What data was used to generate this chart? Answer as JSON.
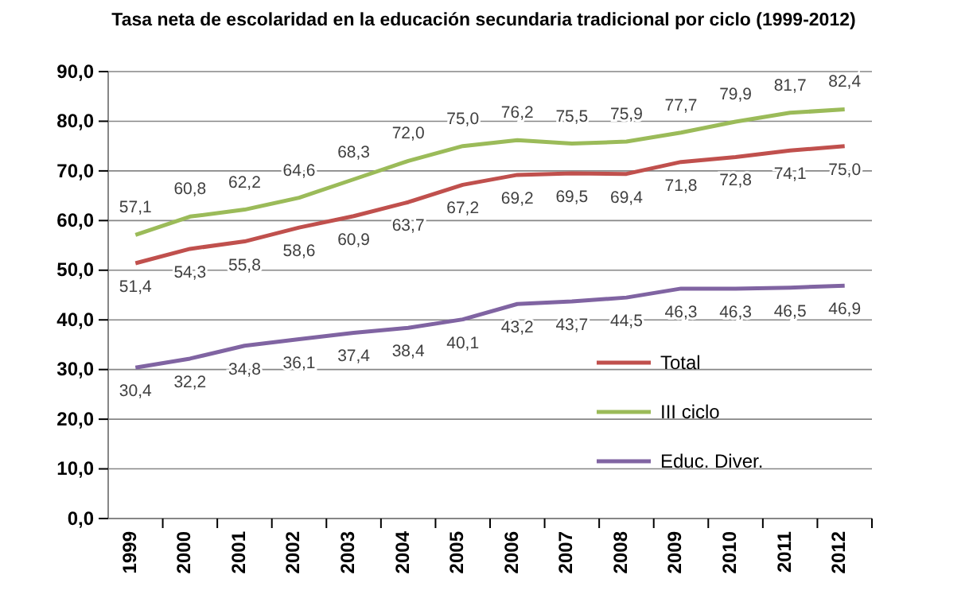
{
  "chart_data": {
    "type": "line",
    "title": "Tasa neta de escolaridad en la educación secundaria tradicional por ciclo (1999-2012)",
    "categories": [
      "1999",
      "2000",
      "2001",
      "2002",
      "2003",
      "2004",
      "2005",
      "2006",
      "2007",
      "2008",
      "2009",
      "2010",
      "2011",
      "2012"
    ],
    "series": [
      {
        "name": "Total",
        "color": "#c0504d",
        "values": [
          51.4,
          54.3,
          55.8,
          58.6,
          60.9,
          63.7,
          67.2,
          69.2,
          69.5,
          69.4,
          71.8,
          72.8,
          74.1,
          75.0
        ],
        "value_labels": [
          "51,4",
          "54,3",
          "55,8",
          "58,6",
          "60,9",
          "63,7",
          "67,2",
          "69,2",
          "69,5",
          "69,4",
          "71,8",
          "72,8",
          "74,1",
          "75,0"
        ]
      },
      {
        "name": "III ciclo",
        "color": "#9bbb59",
        "values": [
          57.1,
          60.8,
          62.2,
          64.6,
          68.3,
          72.0,
          75.0,
          76.2,
          75.5,
          75.9,
          77.7,
          79.9,
          81.7,
          82.4
        ],
        "value_labels": [
          "57,1",
          "60,8",
          "62,2",
          "64,6",
          "68,3",
          "72,0",
          "75,0",
          "76,2",
          "75,5",
          "75,9",
          "77,7",
          "79,9",
          "81,7",
          "82,4"
        ]
      },
      {
        "name": "Educ. Diver.",
        "color": "#8064a2",
        "values": [
          30.4,
          32.2,
          34.8,
          36.1,
          37.4,
          38.4,
          40.1,
          43.2,
          43.7,
          44.5,
          46.3,
          46.3,
          46.5,
          46.9
        ],
        "value_labels": [
          "30,4",
          "32,2",
          "34,8",
          "36,1",
          "37,4",
          "38,4",
          "40,1",
          "43,2",
          "43,7",
          "44,5",
          "46,3",
          "46,3",
          "46,5",
          "46,9"
        ]
      }
    ],
    "ylim": [
      0,
      90
    ],
    "yticks": [
      {
        "value": 0,
        "label": "0,0"
      },
      {
        "value": 10,
        "label": "10,0"
      },
      {
        "value": 20,
        "label": "20,0"
      },
      {
        "value": 30,
        "label": "30,0"
      },
      {
        "value": 40,
        "label": "40,0"
      },
      {
        "value": 50,
        "label": "50,0"
      },
      {
        "value": 60,
        "label": "60,0"
      },
      {
        "value": 70,
        "label": "70,0"
      },
      {
        "value": 80,
        "label": "80,0"
      },
      {
        "value": 90,
        "label": "90,0"
      }
    ],
    "grid": "y",
    "legend": "bottom right",
    "marker": "none",
    "line_style": "solid"
  }
}
